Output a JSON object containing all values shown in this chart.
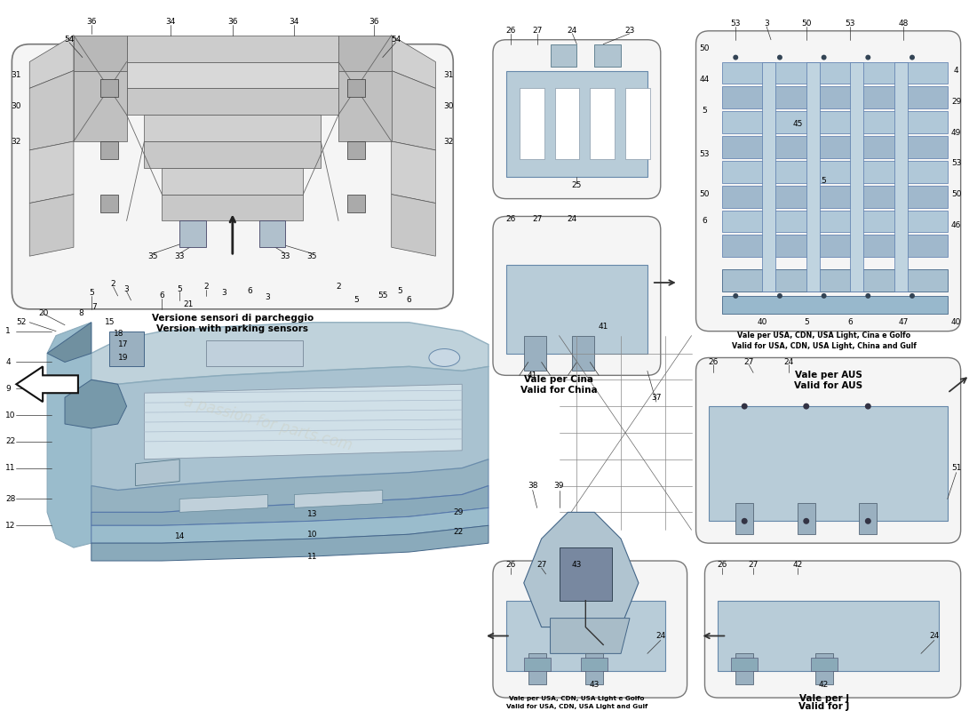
{
  "bg_color": "#ffffff",
  "parking_label_it": "Versione sensori di parcheggio",
  "parking_label_en": "Version with parking sensors",
  "sub_china_it": "Vale per Cina",
  "sub_china_en": "Valid for China",
  "sub_aus_it": "Vale per AUS",
  "sub_aus_en": "Valid for AUS",
  "sub_usa_gulf_it": "Vale per USA, CDN, USA Light e Golfo",
  "sub_usa_gulf_en": "Valid for USA, CDN, USA Light and Gulf",
  "sub_j_it": "Vale per J",
  "sub_j_en": "Valid for J",
  "sub_usa_cdn_it": "Vale per USA, CDN, USA Light, Cina e Golfo",
  "sub_usa_cdn_en": "Valid for USA, CDN, USA Light, China and Gulf",
  "bumper_blue": "#b8cdd8",
  "bumper_dark": "#8aaabb",
  "bumper_mid": "#a0bccb",
  "frame_gray": "#a0a8b0",
  "panel_light": "#c8d8e4",
  "box_bg": "#f8f8f8",
  "box_edge": "#888888",
  "line_col": "#333333",
  "label_col": "#000000",
  "lbl_fs": 6.5,
  "caption_fs": 7.5
}
